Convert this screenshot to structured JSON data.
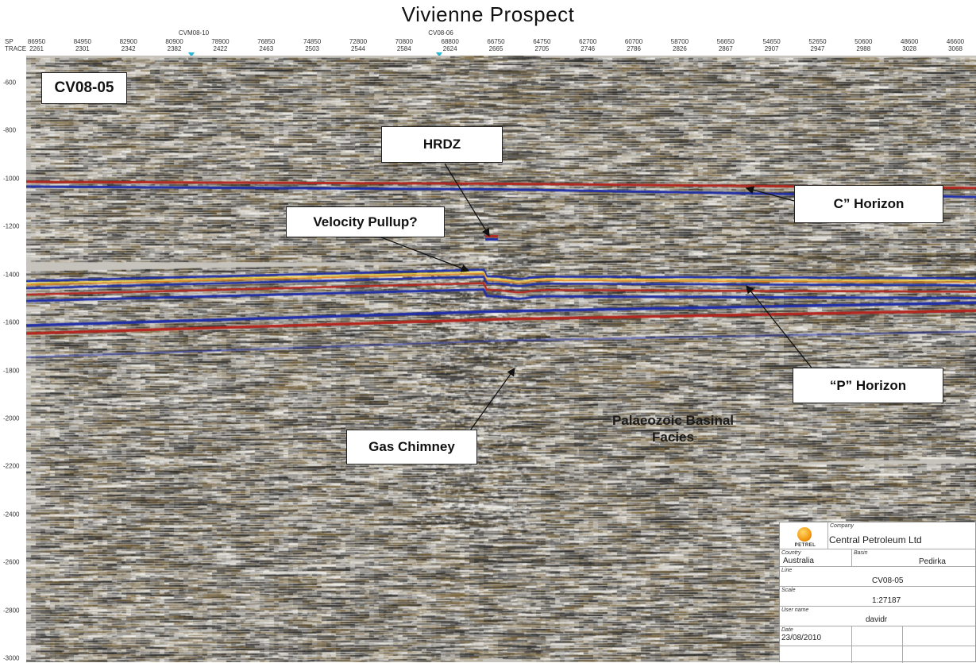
{
  "title": "Vivienne Prospect",
  "wells": [
    "CVM08-10",
    "CV08-06"
  ],
  "axis": {
    "sp_key": "SP",
    "trace_key": "TRACE",
    "sp": [
      "86950",
      "84950",
      "82900",
      "80900",
      "78900",
      "76850",
      "74850",
      "72800",
      "70800",
      "68800",
      "66750",
      "64750",
      "62700",
      "60700",
      "58700",
      "56650",
      "54650",
      "52650",
      "50600",
      "48600",
      "46600"
    ],
    "trace": [
      "2261",
      "2301",
      "2342",
      "2382",
      "2422",
      "2463",
      "2503",
      "2544",
      "2584",
      "2624",
      "2665",
      "2705",
      "2746",
      "2786",
      "2826",
      "2867",
      "2907",
      "2947",
      "2988",
      "3028",
      "3068"
    ],
    "depth": [
      "-600",
      "-800",
      "-1000",
      "-1200",
      "-1400",
      "-1600",
      "-1800",
      "-2000",
      "-2200",
      "-2400",
      "-2600",
      "-2800",
      "-3000"
    ]
  },
  "line_label": "CV08-05",
  "callouts": {
    "hrdz": "HRDZ",
    "c_horizon": "C” Horizon",
    "velocity": "Velocity Pullup?",
    "p_horizon": "“P” Horizon",
    "gas": "Gas Chimney",
    "facies_1": "Palaeozoic Basinal",
    "facies_2": "Facies"
  },
  "titleblock": {
    "logo": "PETREL",
    "company_key": "Company",
    "company": "Central Petroleum Ltd",
    "country_key": "Country",
    "country": "Australia",
    "basin_key": "Basin",
    "basin": "Pedirka",
    "line_key": "Line",
    "line": "CV08-05",
    "scale_key": "Scale",
    "scale": "1:27187",
    "user_key": "User name",
    "user": "davidr",
    "date_key": "Date",
    "date": "23/08/2010"
  },
  "colors": {
    "red": "#b3261e",
    "blue": "#1f2ea6",
    "orange": "#f08a24",
    "yellow": "#f5e04a",
    "well_marker": "#2bb5d6"
  }
}
